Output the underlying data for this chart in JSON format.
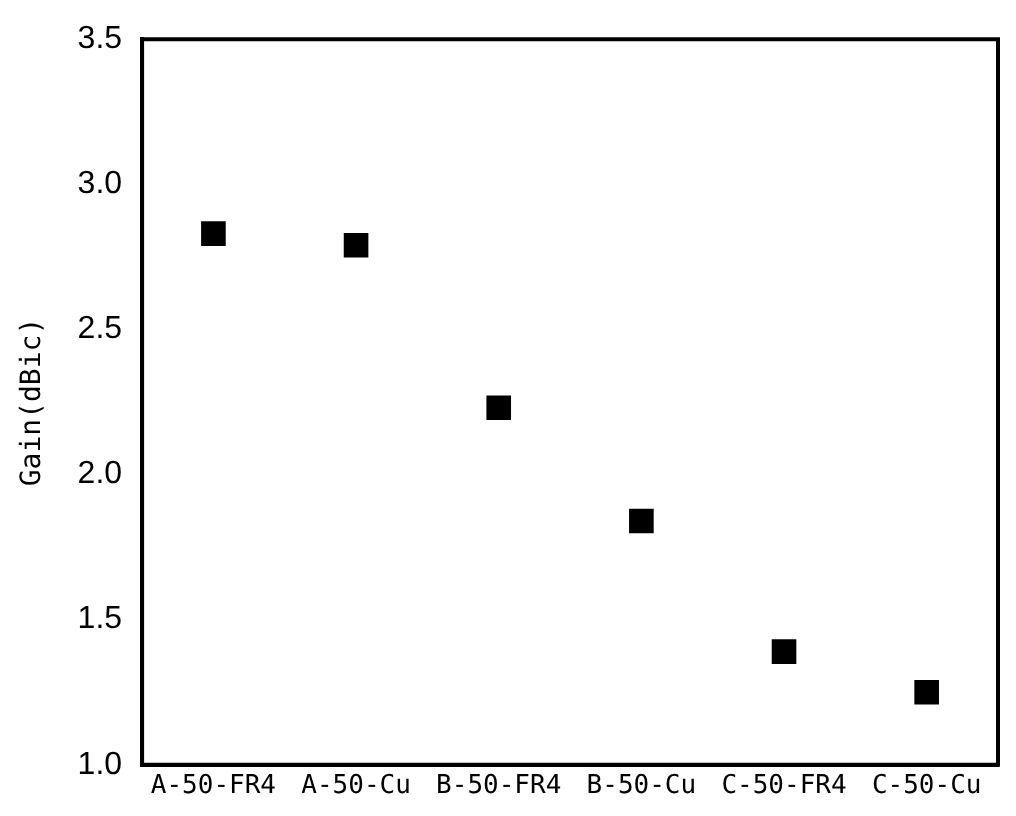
{
  "chart_data": {
    "type": "scatter",
    "ylabel": "Gain(dBic)",
    "categories": [
      "A-50-FR4",
      "A-50-Cu",
      "B-50-FR4",
      "B-50-Cu",
      "C-50-FR4",
      "C-50-Cu"
    ],
    "values": [
      2.83,
      2.79,
      2.23,
      1.84,
      1.39,
      1.25
    ],
    "color": "#000000",
    "ylim": [
      1.0,
      3.5
    ],
    "yticks": [
      {
        "value": 1.0,
        "label": "1.0"
      },
      {
        "value": 1.5,
        "label": "1.5"
      },
      {
        "value": 2.0,
        "label": "2.0"
      },
      {
        "value": 2.5,
        "label": "2.5"
      },
      {
        "value": 3.0,
        "label": "3.0"
      },
      {
        "value": 3.5,
        "label": "3.5"
      }
    ],
    "marker": "square",
    "grid": false,
    "legend": false
  }
}
